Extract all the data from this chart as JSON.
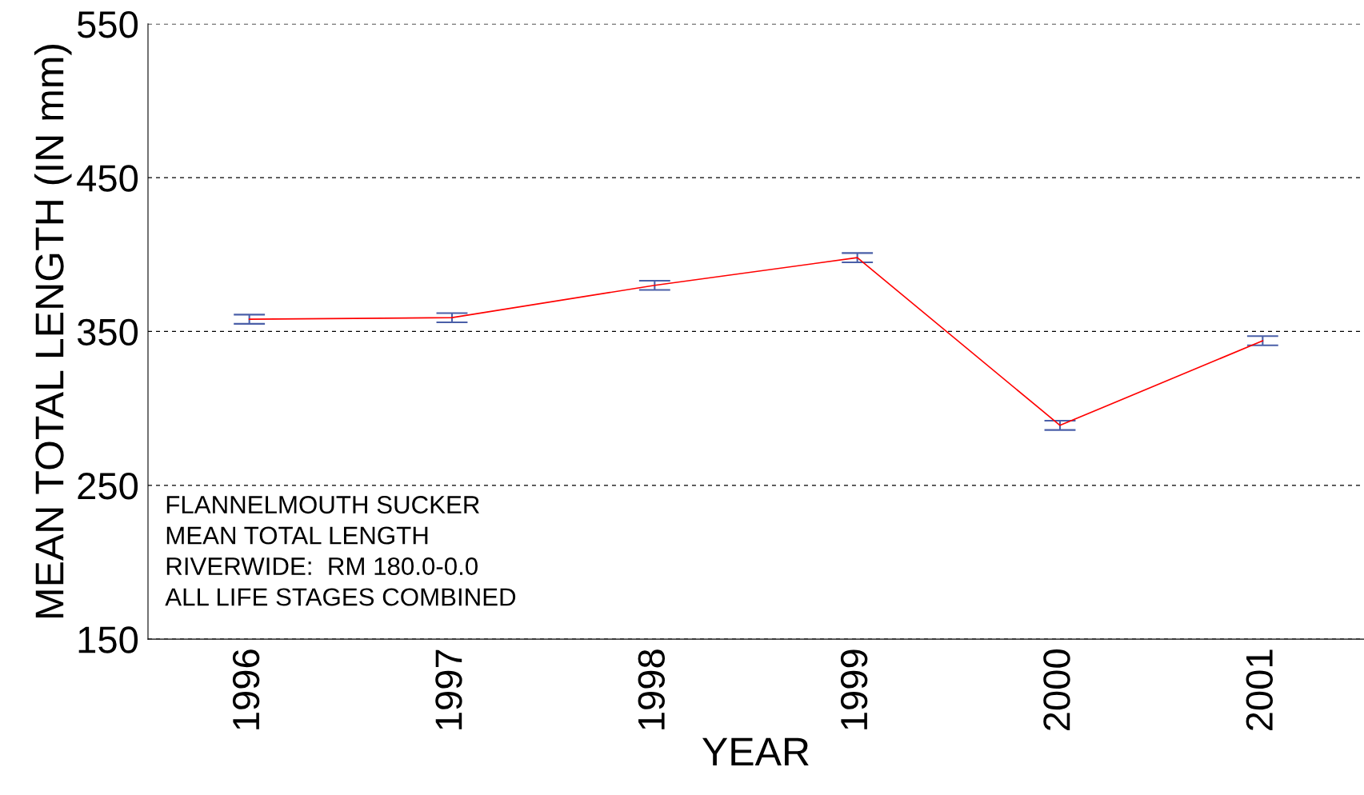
{
  "chart_data": {
    "type": "line",
    "xlabel": "YEAR",
    "ylabel": "MEAN TOTAL LENGTH (IN mm)",
    "categories": [
      "1996",
      "1997",
      "1998",
      "1999",
      "2000",
      "2001"
    ],
    "series": [
      {
        "color": "#ff0000",
        "values": [
          358,
          359,
          380,
          398,
          289,
          344
        ],
        "errors": [
          3,
          3,
          3,
          3,
          3,
          3
        ]
      }
    ],
    "ylim": [
      150,
      550
    ],
    "yticks": [
      150,
      250,
      350,
      450,
      550
    ],
    "grid": "y",
    "line_style": "solid",
    "annotations": [
      "FLANNELMOUTH SUCKER",
      "MEAN TOTAL LENGTH",
      "RIVERWIDE:  RM 180.0-0.0",
      "ALL LIFE STAGES COMBINED"
    ]
  }
}
